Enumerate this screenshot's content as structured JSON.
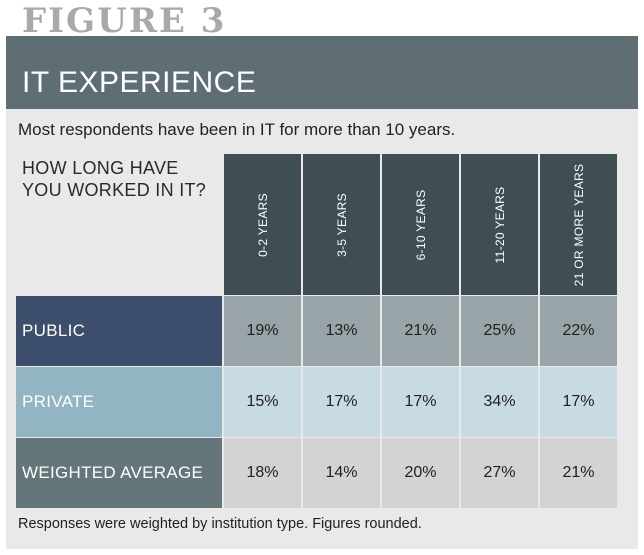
{
  "figure_label": "FIGURE 3",
  "header": {
    "title": "IT EXPERIENCE"
  },
  "subtitle": "Most respondents have been in IT for more than 10 years.",
  "question": "HOW LONG HAVE YOU WORKED IN IT?",
  "footnote": "Responses were weighted by institution type. Figures rounded.",
  "colors": {
    "banner": "#5e6e73",
    "column_header": "#3e4e52",
    "public_label": "#3c4e6b",
    "private_label": "#92b4c3",
    "weighted_label": "#65767a",
    "public_cells": "#98a4a8",
    "private_cells": "#c9dbe2",
    "weighted_cells": "#d3d3d3"
  },
  "chart_data": {
    "type": "table",
    "columns": [
      "0-2 YEARS",
      "3-5 YEARS",
      "6-10 YEARS",
      "11-20 YEARS",
      "21 OR MORE YEARS"
    ],
    "rows": [
      {
        "label": "PUBLIC",
        "values": [
          "19%",
          "13%",
          "21%",
          "25%",
          "22%"
        ]
      },
      {
        "label": "PRIVATE",
        "values": [
          "15%",
          "17%",
          "17%",
          "34%",
          "17%"
        ]
      },
      {
        "label": "WEIGHTED AVERAGE",
        "values": [
          "18%",
          "14%",
          "20%",
          "27%",
          "21%"
        ]
      }
    ]
  }
}
